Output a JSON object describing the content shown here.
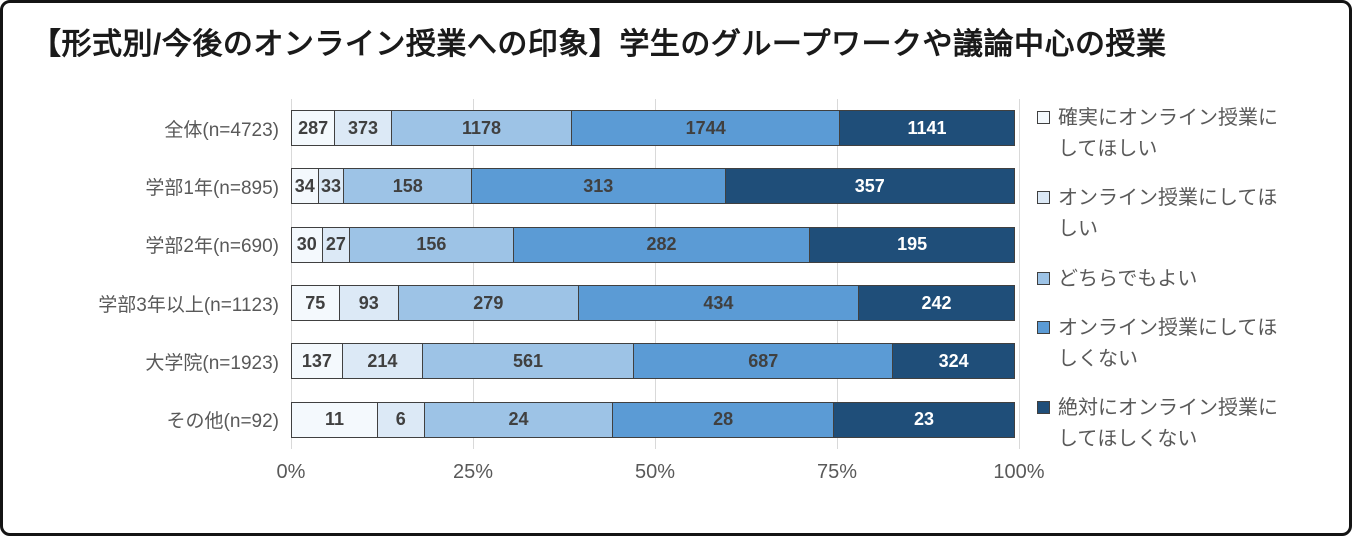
{
  "title": "【形式別/今後のオンライン授業への印象】学生のグループワークや議論中心の授業",
  "chart_data": {
    "type": "bar",
    "orientation": "horizontal",
    "stacked": true,
    "percent_stacked": true,
    "grid": true,
    "legend_position": "right",
    "categories": [
      "全体(n=4723)",
      "学部1年(n=895)",
      "学部2年(n=690)",
      "学部3年以上(n=1123)",
      "大学院(n=1923)",
      "その他(n=92)"
    ],
    "series": [
      {
        "name": "確実にオンライン授業にしてほしい",
        "color": "#f4f9fd",
        "text_color": "#404040",
        "values": [
          287,
          34,
          30,
          75,
          137,
          11
        ]
      },
      {
        "name": "オンライン授業にしてほしい",
        "color": "#dce9f6",
        "text_color": "#404040",
        "values": [
          373,
          33,
          27,
          93,
          214,
          6
        ]
      },
      {
        "name": "どちらでもよい",
        "color": "#9dc3e6",
        "text_color": "#404040",
        "values": [
          1178,
          158,
          156,
          279,
          561,
          24
        ]
      },
      {
        "name": "オンライン授業にしてほしくない",
        "color": "#5b9bd5",
        "text_color": "#404040",
        "values": [
          1744,
          313,
          282,
          434,
          687,
          28
        ]
      },
      {
        "name": "絶対にオンライン授業にしてほしくない",
        "color": "#1f4e79",
        "text_color": "#ffffff",
        "values": [
          1141,
          357,
          195,
          242,
          324,
          23
        ]
      }
    ],
    "x_ticks": [
      "0%",
      "25%",
      "50%",
      "75%",
      "100%"
    ],
    "xlim": [
      0,
      100
    ]
  }
}
